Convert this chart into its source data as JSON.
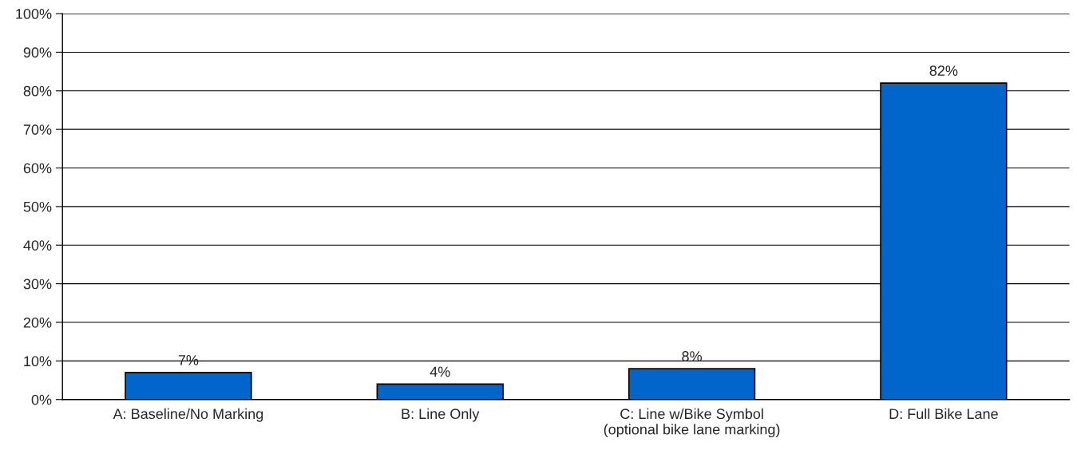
{
  "chart_data": {
    "type": "bar",
    "categories": [
      "A: Baseline/No Marking",
      "B: Line Only",
      "C: Line w/Bike Symbol\n(optional bike lane marking)",
      "D: Full Bike Lane"
    ],
    "values": [
      7,
      4,
      8,
      82
    ],
    "value_labels": [
      "7%",
      "4%",
      "8%",
      "82%"
    ],
    "color": "#0066cc",
    "ylim": [
      0,
      100
    ],
    "yticks": [
      {
        "value": 0,
        "label": "0%"
      },
      {
        "value": 10,
        "label": "10%"
      },
      {
        "value": 20,
        "label": "20%"
      },
      {
        "value": 30,
        "label": "30%"
      },
      {
        "value": 40,
        "label": "40%"
      },
      {
        "value": 50,
        "label": "50%"
      },
      {
        "value": 60,
        "label": "60%"
      },
      {
        "value": 70,
        "label": "70%"
      },
      {
        "value": 80,
        "label": "80%"
      },
      {
        "value": 90,
        "label": "90%"
      },
      {
        "value": 100,
        "label": "100%"
      }
    ],
    "grid": "y"
  }
}
